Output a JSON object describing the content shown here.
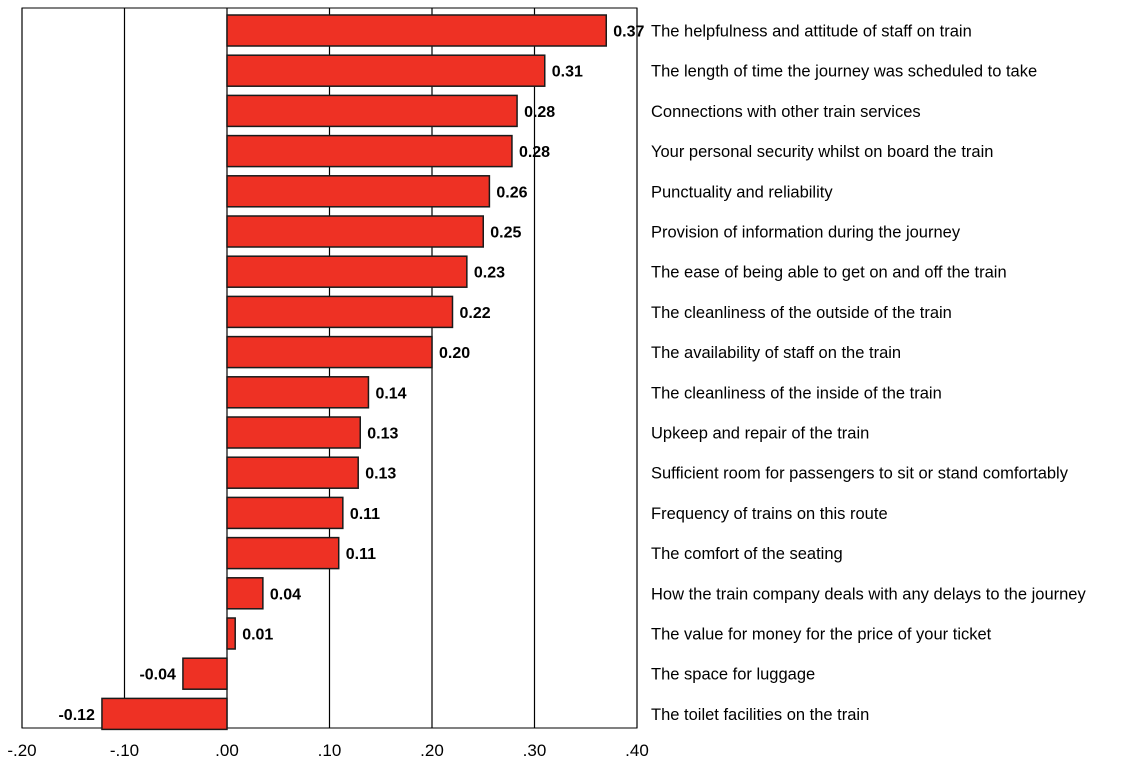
{
  "chart_data": {
    "type": "bar",
    "orientation": "horizontal",
    "title": "",
    "xlabel": "",
    "ylabel": "",
    "xlim": [
      -0.2,
      0.4
    ],
    "x_ticks": [
      -0.2,
      -0.1,
      0.0,
      0.1,
      0.2,
      0.3,
      0.4
    ],
    "x_tick_labels": [
      "-.20",
      "-.10",
      ".00",
      ".10",
      ".20",
      ".30",
      ".40"
    ],
    "grid": true,
    "legend": "none",
    "bar_color": "#ee3124",
    "categories": [
      "The helpfulness and attitude of staff on train",
      "The length of time the journey was scheduled to take",
      "Connections with other train services",
      "Your personal security whilst on board the train",
      "Punctuality and reliability",
      "Provision of information during the journey",
      "The ease of being able to get on and off the train",
      "The cleanliness of the outside of the train",
      "The availability of staff on the train",
      "The cleanliness of the inside of the train",
      "Upkeep and repair of the train",
      "Sufficient room for passengers to sit or stand comfortably",
      "Frequency of trains on this route",
      "The comfort of the seating",
      "How the train company deals with any delays to the journey",
      "The value for money for the price of your ticket",
      "The space for luggage",
      "The toilet facilities on the train"
    ],
    "values": [
      0.37,
      0.31,
      0.283,
      0.278,
      0.256,
      0.25,
      0.234,
      0.22,
      0.2,
      0.138,
      0.13,
      0.128,
      0.113,
      0.109,
      0.035,
      0.008,
      -0.043,
      -0.122
    ],
    "value_labels": [
      "0.37",
      "0.31",
      "0.28",
      "0.28",
      "0.26",
      "0.25",
      "0.23",
      "0.22",
      "0.20",
      "0.14",
      "0.13",
      "0.13",
      "0.11",
      "0.11",
      "0.04",
      "0.01",
      "-0.04",
      "-0.12"
    ]
  }
}
